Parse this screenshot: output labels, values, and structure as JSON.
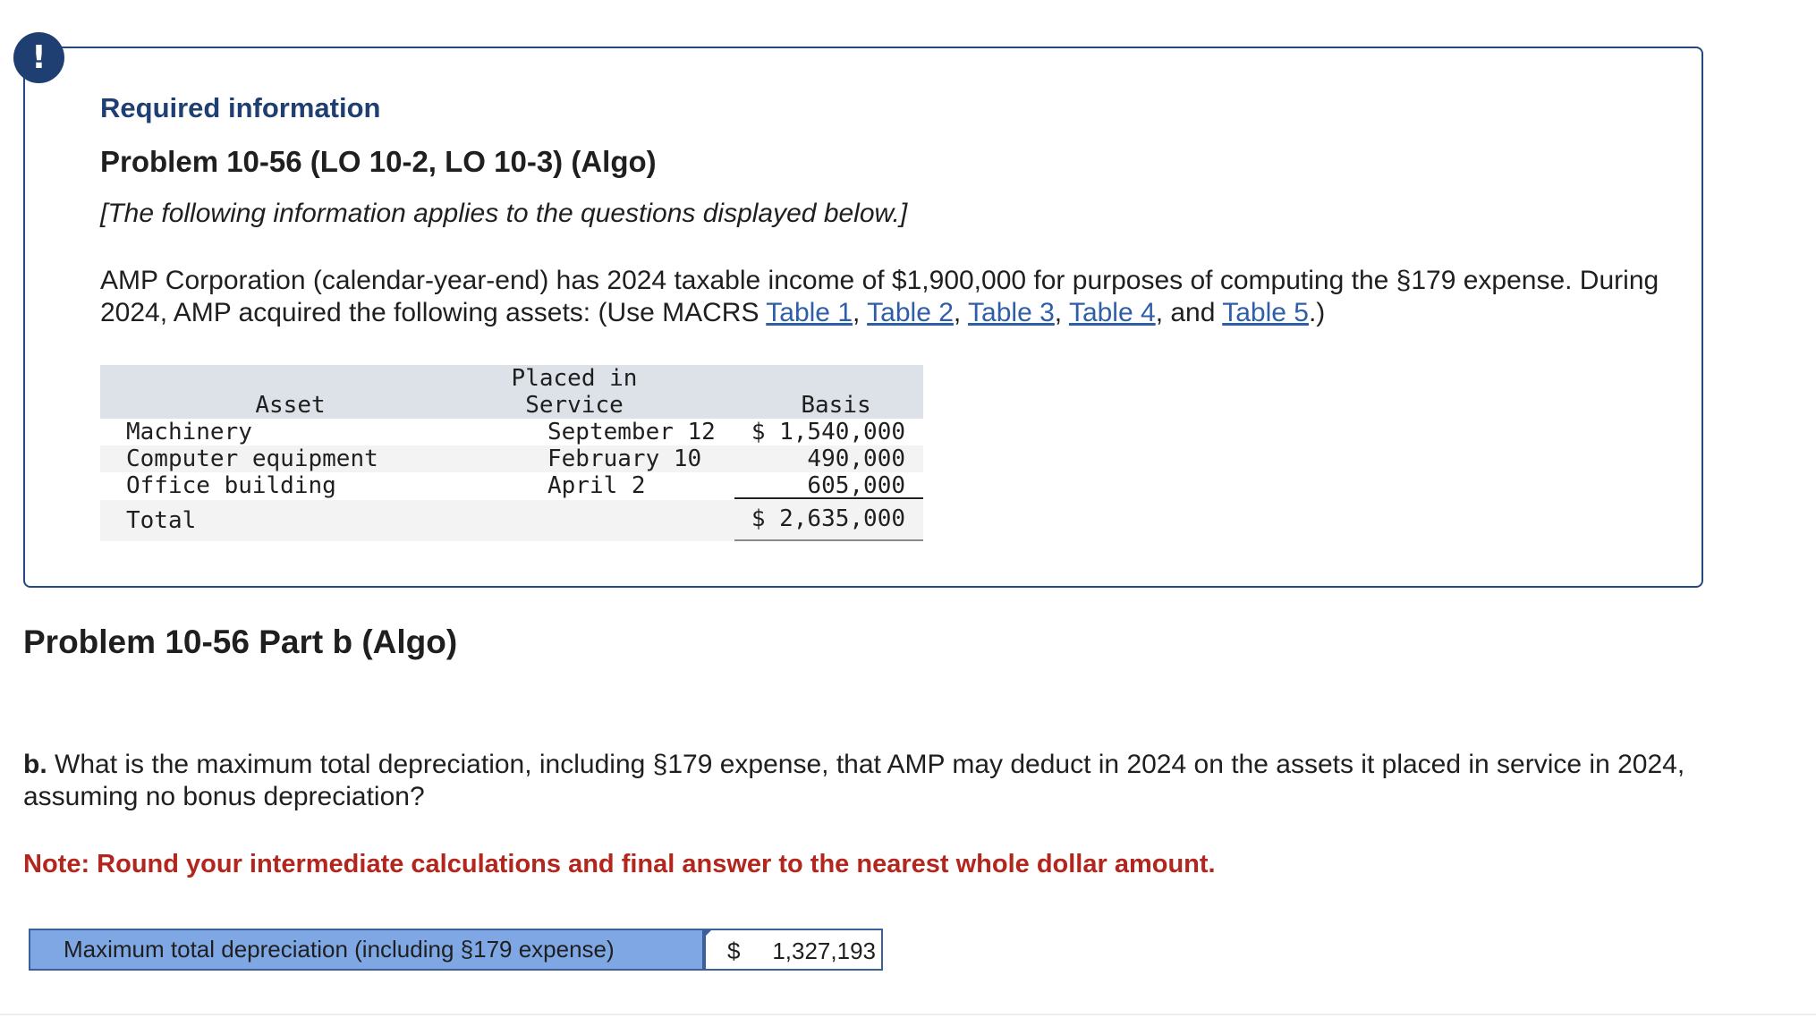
{
  "alert": {
    "glyph": "!"
  },
  "info": {
    "required_title": "Required information",
    "problem_title": "Problem 10-56 (LO 10-2, LO 10-3) (Algo)",
    "intro_note": "[The following information applies to the questions displayed below.]",
    "description_start": "AMP Corporation (calendar-year-end) has 2024 taxable income of $1,900,000 for purposes of computing the §179 expense. During 2024, AMP acquired the following assets: (Use MACRS ",
    "links": [
      "Table 1",
      "Table 2",
      "Table 3",
      "Table 4",
      "Table 5"
    ],
    "sep_comma": ", ",
    "sep_and": ", and ",
    "description_end": ".)"
  },
  "asset_table": {
    "headers": {
      "asset": "Asset",
      "placed_line1": "Placed in",
      "placed_line2": "Service",
      "basis": "Basis"
    },
    "rows": [
      {
        "asset": "Machinery",
        "placed": "September 12",
        "basis": "$ 1,540,000"
      },
      {
        "asset": "Computer equipment",
        "placed": "February 10",
        "basis": "490,000"
      },
      {
        "asset": "Office building",
        "placed": "April 2",
        "basis": "605,000"
      }
    ],
    "total": {
      "label": "Total",
      "basis": "$ 2,635,000"
    }
  },
  "part": {
    "title": "Problem 10-56 Part b (Algo)",
    "question_prefix": "b.",
    "question_text": " What is the maximum total depreciation, including §179 expense, that AMP may deduct in 2024 on the assets it placed in service in 2024, assuming no bonus depreciation?",
    "note": "Note: Round your intermediate calculations and final answer to the nearest whole dollar amount."
  },
  "answer": {
    "label": "Maximum total depreciation (including §179 expense)",
    "currency": "$",
    "value": "1,327,193"
  },
  "colors": {
    "navy": "#1f3f73",
    "link": "#2f5ea8",
    "note_red": "#b3261e",
    "answer_label_bg": "#7ea7e4"
  }
}
